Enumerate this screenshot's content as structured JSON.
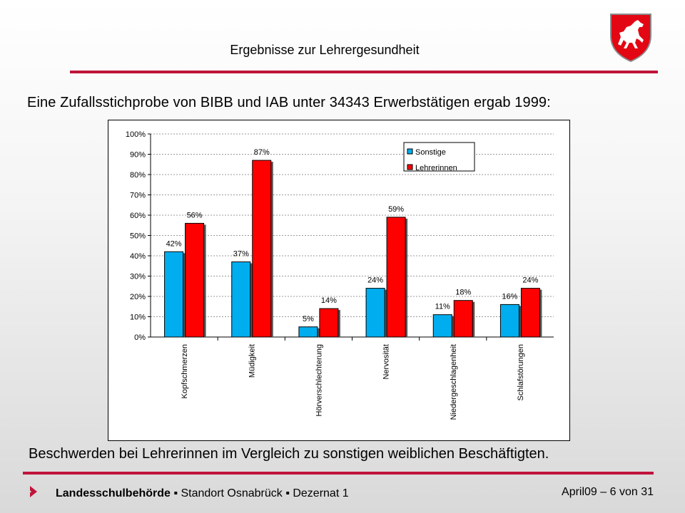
{
  "header": {
    "title": "Ergebnisse zur Lehrergesundheit",
    "logo_icon": "lower-saxony-horse-crest-icon",
    "accent_color": "#c0143c"
  },
  "headline": "Eine Zufallsstichprobe von BIBB und IAB unter 34343 Erwerbstätigen ergab 1999:",
  "caption": "Beschwerden bei Lehrerinnen im Vergleich zu sonstigen weiblichen Beschäftigten.",
  "footer": {
    "org": "Landesschulbehörde",
    "sep1": " ▪ ",
    "location": "Standort Osnabrück",
    "sep2": " ▪ ",
    "department": "Dezernat 1",
    "page_info": "April09 – 6 von 31",
    "chevron_icon": "chevron-right-icon"
  },
  "chart_data": {
    "type": "bar",
    "categories": [
      "Kopfschmerzen",
      "Müdigkeit",
      "Hörverschlechterung",
      "Nervosität",
      "Niedergeschlagenheit",
      "Schlafstörungen"
    ],
    "series": [
      {
        "name": "Sonstige",
        "values": [
          42,
          37,
          5,
          24,
          11,
          16
        ],
        "labels": [
          "42%",
          "37%",
          "5%",
          "24%",
          "11%",
          "16%"
        ],
        "color": "#00aeef"
      },
      {
        "name": "Lehrerinnen",
        "values": [
          56,
          87,
          14,
          59,
          18,
          24
        ],
        "labels": [
          "56%",
          "87%",
          "14%",
          "59%",
          "18%",
          "24%"
        ],
        "color": "#ff0000"
      }
    ],
    "y_ticks": [
      "0%",
      "10%",
      "20%",
      "30%",
      "40%",
      "50%",
      "60%",
      "70%",
      "80%",
      "90%",
      "100%"
    ],
    "ylim": [
      0,
      100
    ],
    "grid": "horizontal dashed",
    "legend_position": "top-right"
  }
}
